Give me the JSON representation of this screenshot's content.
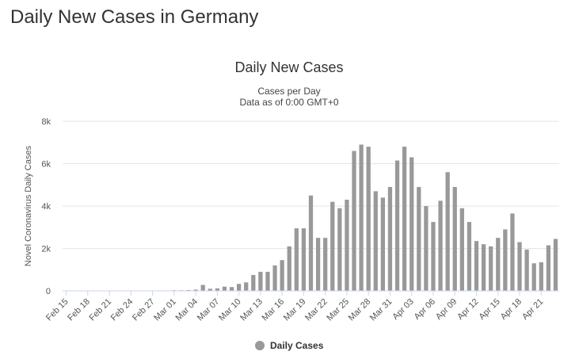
{
  "page": {
    "heading": "Daily New Cases in Germany"
  },
  "chart_data": {
    "type": "bar",
    "title": "Daily New Cases",
    "subtitle_lines": [
      "Cases per Day",
      "Data as of 0:00 GMT+0"
    ],
    "ylabel": "Novel Coronavirus Daily Cases",
    "xlabel": "",
    "ylim": [
      0,
      8000
    ],
    "y_ticks": [
      0,
      2000,
      4000,
      6000,
      8000
    ],
    "y_tick_labels": [
      "0",
      "2k",
      "4k",
      "6k",
      "8k"
    ],
    "x_tick_labels": [
      "Feb 15",
      "Feb 18",
      "Feb 21",
      "Feb 24",
      "Feb 27",
      "Mar 01",
      "Mar 04",
      "Mar 07",
      "Mar 10",
      "Mar 13",
      "Mar 16",
      "Mar 19",
      "Mar 22",
      "Mar 25",
      "Mar 28",
      "Mar 31",
      "Apr 03",
      "Apr 06",
      "Apr 09",
      "Apr 12",
      "Apr 15",
      "Apr 18",
      "Apr 21"
    ],
    "grid": true,
    "legend_position": "bottom-center",
    "series": [
      {
        "name": "Daily Cases",
        "color": "#999999",
        "categories": [
          "Feb 15",
          "Feb 16",
          "Feb 17",
          "Feb 18",
          "Feb 19",
          "Feb 20",
          "Feb 21",
          "Feb 22",
          "Feb 23",
          "Feb 24",
          "Feb 25",
          "Feb 26",
          "Feb 27",
          "Feb 28",
          "Feb 29",
          "Mar 01",
          "Mar 02",
          "Mar 03",
          "Mar 04",
          "Mar 05",
          "Mar 06",
          "Mar 07",
          "Mar 08",
          "Mar 09",
          "Mar 10",
          "Mar 11",
          "Mar 12",
          "Mar 13",
          "Mar 14",
          "Mar 15",
          "Mar 16",
          "Mar 17",
          "Mar 18",
          "Mar 19",
          "Mar 20",
          "Mar 21",
          "Mar 22",
          "Mar 23",
          "Mar 24",
          "Mar 25",
          "Mar 26",
          "Mar 27",
          "Mar 28",
          "Mar 29",
          "Mar 30",
          "Mar 31",
          "Apr 01",
          "Apr 02",
          "Apr 03",
          "Apr 04",
          "Apr 05",
          "Apr 06",
          "Apr 07",
          "Apr 08",
          "Apr 09",
          "Apr 10",
          "Apr 11",
          "Apr 12",
          "Apr 13",
          "Apr 14",
          "Apr 15",
          "Apr 16",
          "Apr 17",
          "Apr 18",
          "Apr 19",
          "Apr 20",
          "Apr 21",
          "Apr 22",
          "Apr 23"
        ],
        "values": [
          0,
          0,
          0,
          0,
          0,
          0,
          0,
          0,
          0,
          0,
          2,
          10,
          14,
          20,
          20,
          30,
          30,
          40,
          60,
          280,
          100,
          120,
          200,
          180,
          330,
          400,
          750,
          900,
          900,
          1200,
          1450,
          2100,
          2950,
          2950,
          4500,
          2500,
          2500,
          4200,
          3900,
          4300,
          6600,
          6900,
          6800,
          4700,
          4400,
          4900,
          6150,
          6800,
          6300,
          4900,
          4000,
          3250,
          4250,
          5600,
          4900,
          3900,
          3250,
          2350,
          2200,
          2100,
          2500,
          2900,
          3650,
          2300,
          1950,
          1300,
          1350,
          2150,
          2450
        ]
      }
    ]
  }
}
